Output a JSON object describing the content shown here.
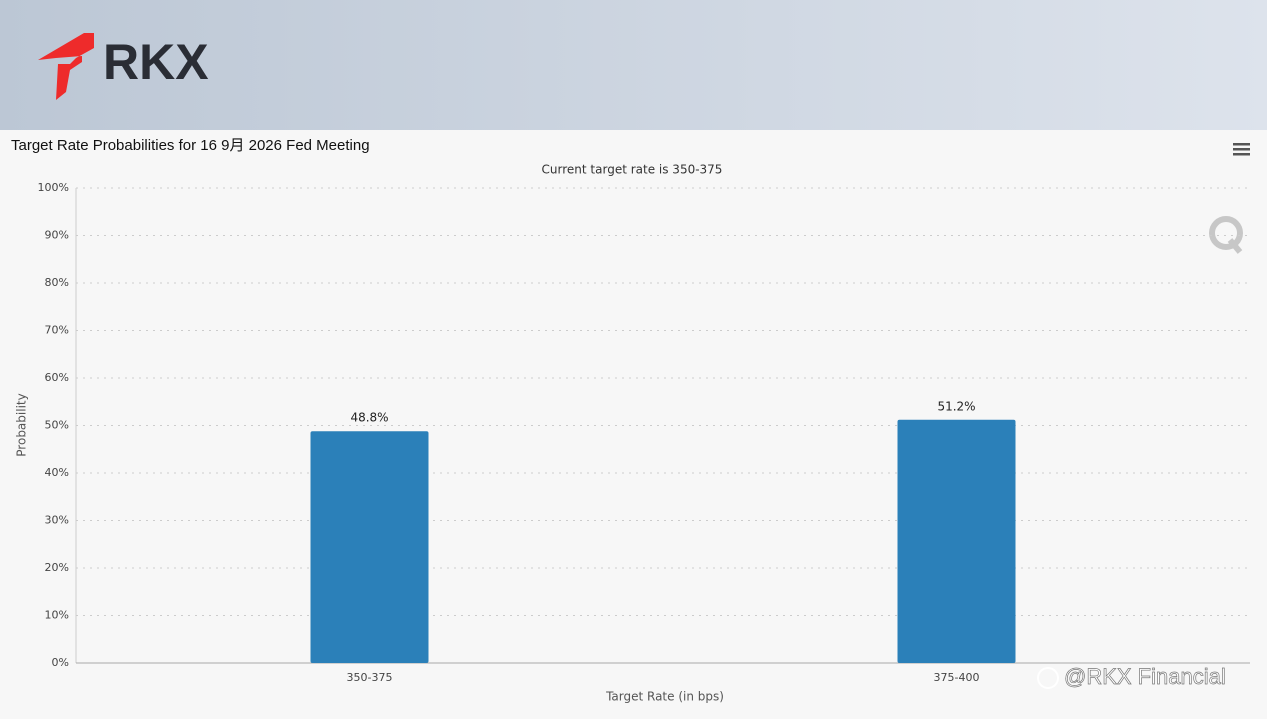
{
  "logo": "RKX",
  "watermark": "@RKX Financial",
  "chart_data": {
    "type": "bar",
    "title": "Target Rate Probabilities for 16 9月 2026 Fed Meeting",
    "subtitle": "Current target rate is 350-375",
    "x_label": "Target Rate (in bps)",
    "y_label": "Probability",
    "categories": [
      "350-375",
      "375-400"
    ],
    "values": [
      48.8,
      51.2
    ],
    "value_labels": [
      "48.8%",
      "51.2%"
    ],
    "color": "#2b80b9",
    "ylim": [
      0,
      100
    ],
    "yticks": [
      {
        "value": 0,
        "label": "0%"
      },
      {
        "value": 10,
        "label": "10%"
      },
      {
        "value": 20,
        "label": "20%"
      },
      {
        "value": 30,
        "label": "30%"
      },
      {
        "value": 40,
        "label": "40%"
      },
      {
        "value": 50,
        "label": "50%"
      },
      {
        "value": 60,
        "label": "60%"
      },
      {
        "value": 70,
        "label": "70%"
      },
      {
        "value": 80,
        "label": "80%"
      },
      {
        "value": 90,
        "label": "90%"
      },
      {
        "value": 100,
        "label": "100%"
      }
    ],
    "grid": true
  }
}
